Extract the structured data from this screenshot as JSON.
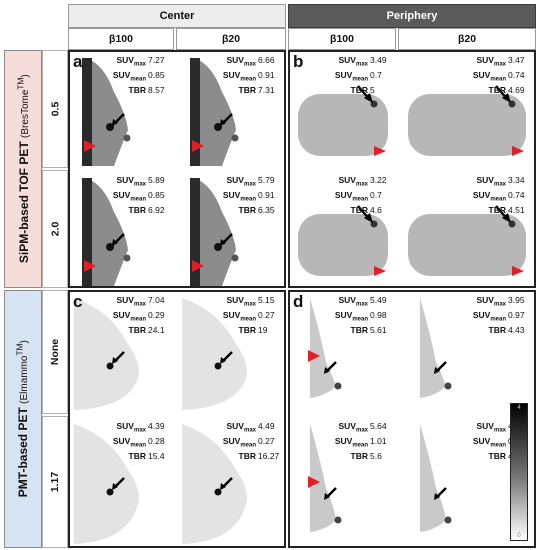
{
  "headers": {
    "center": "Center",
    "periphery": "Periphery",
    "sub": [
      "β100",
      "β20",
      "β100",
      "β20"
    ]
  },
  "groups": {
    "sipm_main": "SiPM-based TOF PET",
    "sipm_paren": "(BresTome",
    "sipm_tm": "TM",
    "pmt_main": "PMT-based PET",
    "pmt_paren": "(Elmammo",
    "pmt_tm": "TM"
  },
  "rows": [
    "0.5",
    "2.0",
    "None",
    "1.17"
  ],
  "panel_letters": {
    "a": "a",
    "b": "b",
    "c": "c",
    "d": "d"
  },
  "stat_labels": {
    "suv": "SUV",
    "max": "max",
    "mean": "mean",
    "tbr": "TBR"
  },
  "cells": [
    {
      "max": "7.27",
      "mean": "0.85",
      "tbr": "8.57"
    },
    {
      "max": "6.66",
      "mean": "0.91",
      "tbr": "7.31"
    },
    {
      "max": "3.49",
      "mean": "0.7",
      "tbr": "5"
    },
    {
      "max": "3.47",
      "mean": "0.74",
      "tbr": "4.69"
    },
    {
      "max": "5.89",
      "mean": "0.85",
      "tbr": "6.92"
    },
    {
      "max": "5.79",
      "mean": "0.91",
      "tbr": "6.35"
    },
    {
      "max": "3.22",
      "mean": "0.7",
      "tbr": "4.6"
    },
    {
      "max": "3.34",
      "mean": "0.74",
      "tbr": "4.51"
    },
    {
      "max": "7.04",
      "mean": "0.29",
      "tbr": "24.1"
    },
    {
      "max": "5.15",
      "mean": "0.27",
      "tbr": "19"
    },
    {
      "max": "5.49",
      "mean": "0.98",
      "tbr": "5.61"
    },
    {
      "max": "3.95",
      "mean": "0.97",
      "tbr": "4.43"
    },
    {
      "max": "4.39",
      "mean": "0.28",
      "tbr": "15.4"
    },
    {
      "max": "4.49",
      "mean": "0.27",
      "tbr": "16.27"
    },
    {
      "max": "5.64",
      "mean": "1.01",
      "tbr": "5.6"
    },
    {
      "max": "4.94",
      "mean": "0.97",
      "tbr": "4.06"
    }
  ],
  "colors": {
    "sipm_bg": "#f7dcdc",
    "pmt_bg": "#d6e4f2",
    "periphery_bg": "#5a5a5a",
    "arrow": "#000000",
    "marker": "#e01f26"
  },
  "colorbar": {
    "top": "4",
    "bottom": "0"
  }
}
